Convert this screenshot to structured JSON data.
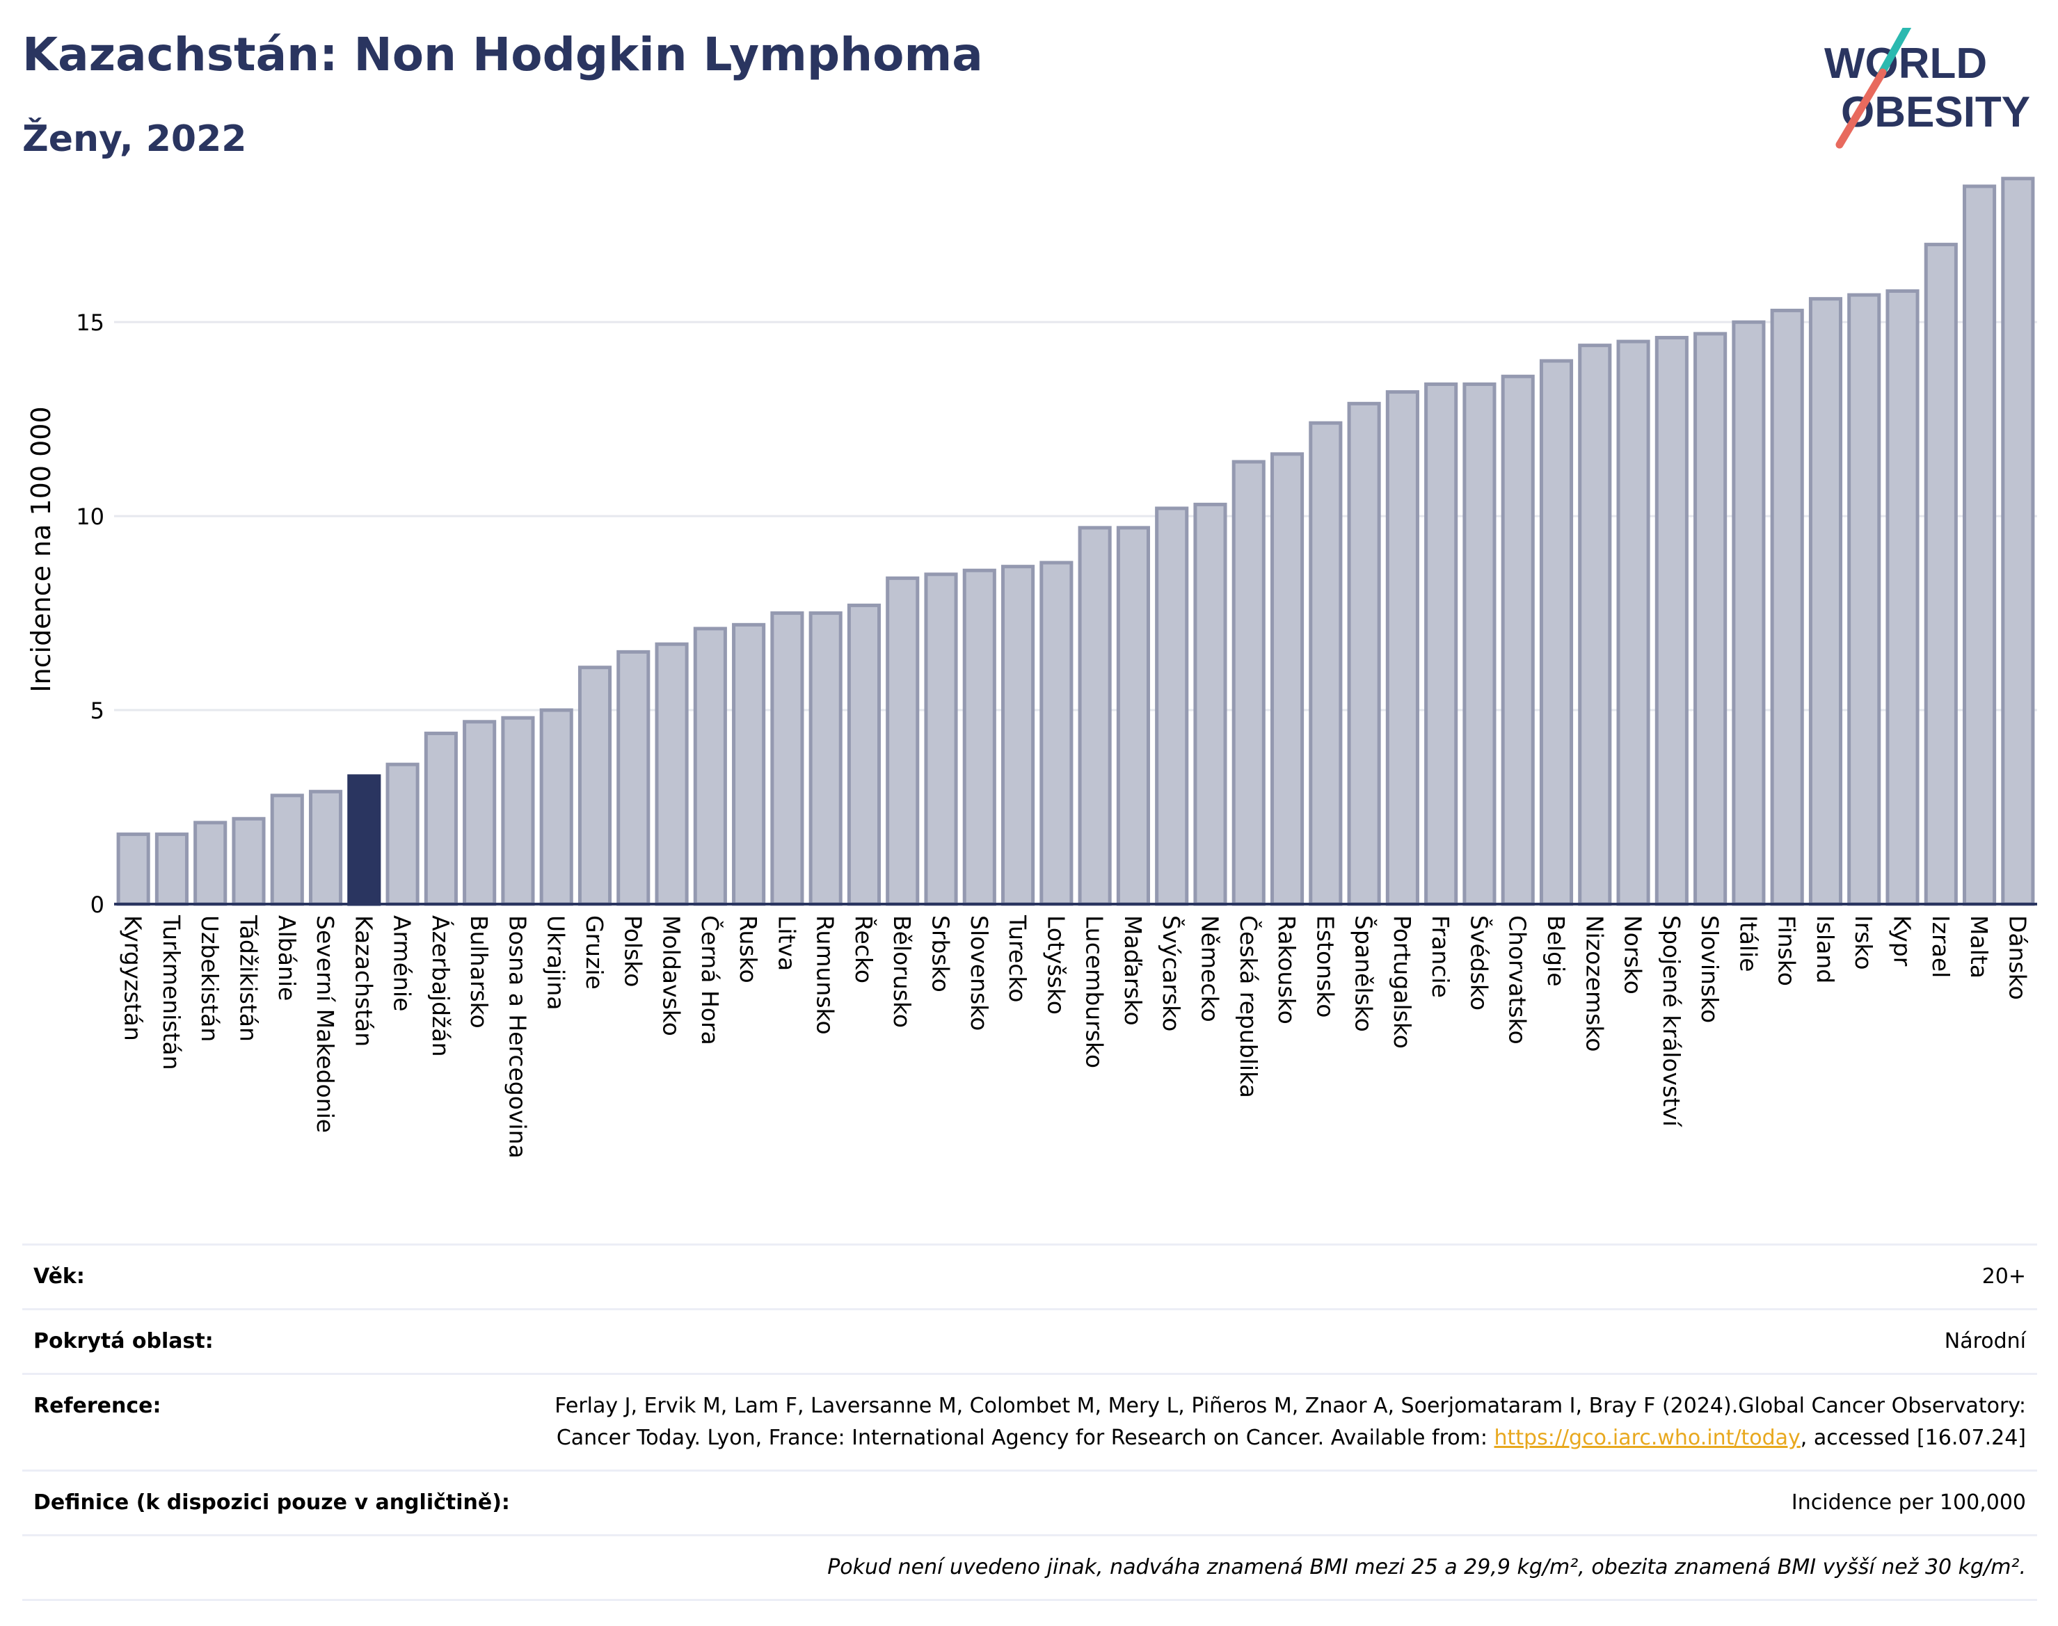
{
  "header": {
    "title": "Kazachstán: Non Hodgkin Lymphoma",
    "subtitle": "Ženy, 2022"
  },
  "logo": {
    "line1": "WORLD",
    "line2": "OBESITY",
    "icon": "world-obesity-logo"
  },
  "chart_data": {
    "type": "bar",
    "ylabel": "Incidence na 100 000",
    "xlabel": "",
    "ylim": [
      0,
      19
    ],
    "yticks": [
      0,
      5,
      10,
      15
    ],
    "grid": true,
    "highlight": "Kazachstán",
    "colors": {
      "bar": "#bfc3d1",
      "bar_border": "#9499b0",
      "highlight": "#2a3560",
      "grid": "#e6e8ee",
      "axis": "#2a3560"
    },
    "categories": [
      "Kyrgyzstán",
      "Turkmenistán",
      "Uzbekistán",
      "Tádžikistán",
      "Albánie",
      "Severní Makedonie",
      "Kazachstán",
      "Arménie",
      "Ázerbajdžán",
      "Bulharsko",
      "Bosna a Hercegovina",
      "Ukrajina",
      "Gruzie",
      "Polsko",
      "Moldavsko",
      "Černá Hora",
      "Rusko",
      "Litva",
      "Rumunsko",
      "Řecko",
      "Bělorusko",
      "Srbsko",
      "Slovensko",
      "Turecko",
      "Lotyšsko",
      "Lucembursko",
      "Maďarsko",
      "Švýcarsko",
      "Německo",
      "Česká republika",
      "Rakousko",
      "Estonsko",
      "Španělsko",
      "Portugalsko",
      "Francie",
      "Švédsko",
      "Chorvatsko",
      "Belgie",
      "Nizozemsko",
      "Norsko",
      "Spojené království",
      "Slovinsko",
      "Itálie",
      "Finsko",
      "Island",
      "Irsko",
      "Kypr",
      "Izrael",
      "Malta",
      "Dánsko"
    ],
    "values": [
      1.8,
      1.8,
      2.1,
      2.2,
      2.8,
      2.9,
      3.3,
      3.6,
      4.4,
      4.7,
      4.8,
      5.0,
      6.1,
      6.5,
      6.7,
      7.1,
      7.2,
      7.5,
      7.5,
      7.7,
      8.4,
      8.5,
      8.6,
      8.7,
      8.8,
      9.7,
      9.7,
      10.2,
      10.3,
      11.4,
      11.6,
      12.4,
      12.9,
      13.2,
      13.4,
      13.4,
      13.6,
      14.0,
      14.4,
      14.5,
      14.6,
      14.7,
      15.0,
      15.3,
      15.6,
      15.7,
      15.8,
      17.0,
      18.5,
      18.7
    ]
  },
  "info": {
    "rows": [
      {
        "label": "Věk:",
        "value": "20+"
      },
      {
        "label": "Pokrytá oblast:",
        "value": "Národní"
      },
      {
        "label": "Reference:",
        "value": "Ferlay J, Ervik M, Lam F, Laversanne M, Colombet M, Mery L, Piñeros M, Znaor A, Soerjomataram I, Bray F (2024).Global Cancer Observatory: Cancer Today. Lyon, France: International Agency for Research on Cancer. Available from:",
        "link": "https://gco.iarc.who.int/today",
        "suffix": ", accessed [16.07.24]"
      },
      {
        "label": "Definice (k dispozici pouze v angličtině):",
        "value": "Incidence per 100,000"
      }
    ],
    "note": "Pokud není uvedeno jinak, nadváha znamená BMI mezi 25 a 29,9 kg/m², obezita znamená BMI vyšší než 30 kg/m²."
  }
}
